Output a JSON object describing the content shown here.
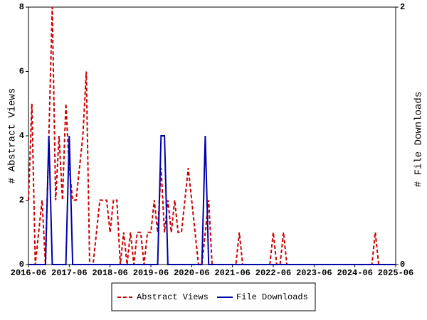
{
  "chart_data": {
    "type": "line",
    "ylabel": "# Abstract Views",
    "y2label": "# File Downloads",
    "x": [
      "2016-06",
      "2016-07",
      "2016-08",
      "2016-09",
      "2016-10",
      "2016-11",
      "2016-12",
      "2017-01",
      "2017-02",
      "2017-03",
      "2017-04",
      "2017-05",
      "2017-06",
      "2017-07",
      "2017-08",
      "2017-09",
      "2017-10",
      "2017-11",
      "2017-12",
      "2018-01",
      "2018-02",
      "2018-03",
      "2018-04",
      "2018-05",
      "2018-06",
      "2018-07",
      "2018-08",
      "2018-09",
      "2018-10",
      "2018-11",
      "2018-12",
      "2019-01",
      "2019-02",
      "2019-03",
      "2019-04",
      "2019-05",
      "2019-06",
      "2019-07",
      "2019-08",
      "2019-09",
      "2019-10",
      "2019-11",
      "2019-12",
      "2020-01",
      "2020-02",
      "2020-03",
      "2020-04",
      "2020-05",
      "2020-06",
      "2020-07",
      "2020-08",
      "2020-09",
      "2020-10",
      "2020-11",
      "2020-12",
      "2021-01",
      "2021-02",
      "2021-03",
      "2021-04",
      "2021-05",
      "2021-06",
      "2021-07",
      "2021-08",
      "2021-09",
      "2021-10",
      "2021-11",
      "2021-12",
      "2022-01",
      "2022-02",
      "2022-03",
      "2022-04",
      "2022-05",
      "2022-06",
      "2022-07",
      "2022-08",
      "2022-09",
      "2022-10",
      "2022-11",
      "2022-12",
      "2023-01",
      "2023-02",
      "2023-03",
      "2023-04",
      "2023-05",
      "2023-06",
      "2023-07",
      "2023-08",
      "2023-09",
      "2023-10",
      "2023-11",
      "2023-12",
      "2024-01",
      "2024-02",
      "2024-03",
      "2024-04",
      "2024-05",
      "2024-06",
      "2024-07",
      "2024-08",
      "2024-09",
      "2024-10",
      "2024-11",
      "2024-12",
      "2025-01",
      "2025-02",
      "2025-03",
      "2025-04",
      "2025-05",
      "2025-06"
    ],
    "xlim": [
      "2016-06",
      "2025-06"
    ],
    "xticks": [
      "2016-06",
      "2017-06",
      "2018-06",
      "2019-06",
      "2020-06",
      "2021-06",
      "2022-06",
      "2023-06",
      "2024-06",
      "2025-06"
    ],
    "ylim": [
      0,
      8
    ],
    "yticks": [
      0,
      2,
      4,
      6,
      8
    ],
    "y2lim": [
      0,
      2
    ],
    "y2ticks": [
      0,
      2
    ],
    "series": [
      {
        "name": "Abstract Views",
        "color": "#cc0000",
        "dash": true,
        "values": [
          2,
          5,
          0,
          1,
          2,
          0,
          4,
          8,
          2,
          4,
          2,
          5,
          3,
          2,
          2,
          3,
          4,
          6,
          0,
          0,
          1,
          2,
          2,
          2,
          1,
          2,
          2,
          0,
          1,
          0,
          1,
          0,
          1,
          1,
          0,
          1,
          1,
          2,
          1,
          3,
          1,
          2,
          1,
          2,
          1,
          1,
          2,
          3,
          2,
          1,
          0,
          0,
          1,
          2,
          0,
          0,
          0,
          0,
          0,
          0,
          0,
          0,
          1,
          0,
          0,
          0,
          0,
          0,
          0,
          0,
          0,
          0,
          1,
          0,
          0,
          1,
          0,
          0,
          0,
          0,
          0,
          0,
          0,
          0,
          0,
          0,
          0,
          0,
          0,
          0,
          0,
          0,
          0,
          0,
          0,
          0,
          0,
          0,
          0,
          0,
          0,
          0,
          1,
          0,
          0,
          0,
          0,
          0,
          0
        ]
      },
      {
        "name": "File Downloads",
        "color": "#0000aa",
        "dash": false,
        "axis": "y2",
        "values": [
          0,
          0,
          0,
          0,
          0,
          0,
          1,
          0,
          0,
          0,
          0,
          0,
          1,
          0,
          0,
          0,
          0,
          0,
          0,
          0,
          0,
          0,
          0,
          0,
          0,
          0,
          0,
          0,
          0,
          0,
          0,
          0,
          0,
          0,
          0,
          0,
          0,
          0,
          0,
          1,
          1,
          0,
          0,
          0,
          0,
          0,
          0,
          0,
          0,
          0,
          0,
          0,
          1,
          0,
          0,
          0,
          0,
          0,
          0,
          0,
          0,
          0,
          0,
          0,
          0,
          0,
          0,
          0,
          0,
          0,
          0,
          0,
          0,
          0,
          0,
          0,
          0,
          0,
          0,
          0,
          0,
          0,
          0,
          0,
          0,
          0,
          0,
          0,
          0,
          0,
          0,
          0,
          0,
          0,
          0,
          0,
          0,
          0,
          0,
          0,
          0,
          0,
          0,
          0,
          0,
          0,
          0,
          0,
          0
        ]
      }
    ]
  }
}
